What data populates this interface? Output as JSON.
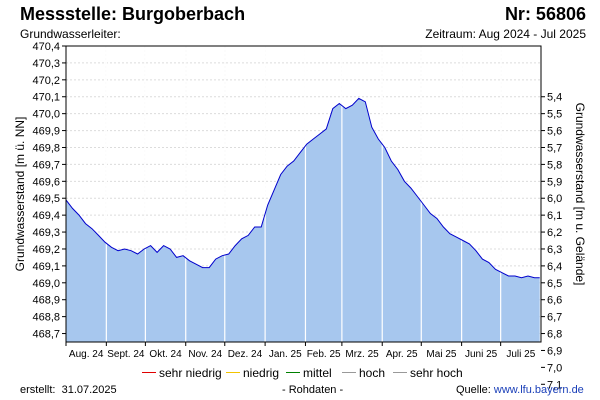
{
  "header": {
    "title": "Messstelle: Burgoberbach",
    "number": "Nr: 56806",
    "aquifer": "Grundwasserleiter:",
    "period": "Zeitraum: Aug 2024 - Jul 2025"
  },
  "legend": {
    "items": [
      {
        "label": "sehr niedrig",
        "color": "#e00000"
      },
      {
        "label": "niedrig",
        "color": "#f2c400"
      },
      {
        "label": "mittel",
        "color": "#008000"
      },
      {
        "label": "hoch",
        "color": "#999999"
      },
      {
        "label": "sehr hoch",
        "color": "#999999"
      }
    ]
  },
  "footer": {
    "created_label": "erstellt:",
    "created_date": "31.07.2025",
    "raw_label": "- Rohdaten -",
    "source_label": "Quelle:",
    "source_link": "www.lfu.bayern.de"
  },
  "colors": {
    "line": "#0000cc",
    "fill": "#a7c7ee",
    "grid": "#dcdcdc",
    "month_line": "#ffffff"
  },
  "chart_data": {
    "type": "area",
    "title": "",
    "ylabel": "Grundwasserstand [m ü. NN]",
    "y2label": "Grundwasserstand [m u. Gelände]",
    "ylim": [
      468.65,
      470.4
    ],
    "yticks": [
      "468,7",
      "468,8",
      "468,9",
      "469,0",
      "469,1",
      "469,2",
      "469,3",
      "469,4",
      "469,5",
      "469,6",
      "469,7",
      "469,8",
      "469,9",
      "470,0",
      "470,1",
      "470,2",
      "470,3",
      "470,4"
    ],
    "y2_reference": 475.5,
    "y2ticks": [
      "5,4",
      "5,5",
      "5,6",
      "5,7",
      "5,8",
      "5,9",
      "6,0",
      "6,1",
      "6,2",
      "6,3",
      "6,4",
      "6,5",
      "6,6",
      "6,7",
      "6,8",
      "6,9",
      "7,0",
      "7,1"
    ],
    "x_months": [
      "Aug. 24",
      "Sept. 24",
      "Okt. 24",
      "Nov. 24",
      "Dez. 24",
      "Jan. 25",
      "Feb. 25",
      "Mrz. 25",
      "Apr. 25",
      "Mai 25",
      "Juni 25",
      "Juli 25"
    ],
    "x_start": "2024-08-01",
    "x_end": "2025-07-31",
    "grid": true,
    "series": [
      {
        "points": [
          [
            "2024-08-01",
            469.49
          ],
          [
            "2024-08-06",
            469.44
          ],
          [
            "2024-08-11",
            469.4
          ],
          [
            "2024-08-16",
            469.35
          ],
          [
            "2024-08-21",
            469.32
          ],
          [
            "2024-08-26",
            469.28
          ],
          [
            "2024-08-31",
            469.24
          ],
          [
            "2024-09-05",
            469.21
          ],
          [
            "2024-09-10",
            469.19
          ],
          [
            "2024-09-15",
            469.2
          ],
          [
            "2024-09-20",
            469.19
          ],
          [
            "2024-09-25",
            469.17
          ],
          [
            "2024-09-30",
            469.2
          ],
          [
            "2024-10-05",
            469.22
          ],
          [
            "2024-10-10",
            469.18
          ],
          [
            "2024-10-15",
            469.22
          ],
          [
            "2024-10-20",
            469.2
          ],
          [
            "2024-10-25",
            469.15
          ],
          [
            "2024-10-30",
            469.16
          ],
          [
            "2024-11-04",
            469.13
          ],
          [
            "2024-11-09",
            469.11
          ],
          [
            "2024-11-14",
            469.09
          ],
          [
            "2024-11-19",
            469.09
          ],
          [
            "2024-11-24",
            469.14
          ],
          [
            "2024-11-29",
            469.16
          ],
          [
            "2024-12-04",
            469.17
          ],
          [
            "2024-12-09",
            469.22
          ],
          [
            "2024-12-14",
            469.26
          ],
          [
            "2024-12-19",
            469.28
          ],
          [
            "2024-12-24",
            469.33
          ],
          [
            "2024-12-29",
            469.33
          ],
          [
            "2025-01-03",
            469.46
          ],
          [
            "2025-01-08",
            469.55
          ],
          [
            "2025-01-13",
            469.64
          ],
          [
            "2025-01-18",
            469.69
          ],
          [
            "2025-01-23",
            469.72
          ],
          [
            "2025-01-28",
            469.77
          ],
          [
            "2025-02-02",
            469.82
          ],
          [
            "2025-02-07",
            469.85
          ],
          [
            "2025-02-12",
            469.88
          ],
          [
            "2025-02-17",
            469.91
          ],
          [
            "2025-02-22",
            470.03
          ],
          [
            "2025-02-27",
            470.06
          ],
          [
            "2025-03-04",
            470.03
          ],
          [
            "2025-03-09",
            470.05
          ],
          [
            "2025-03-14",
            470.09
          ],
          [
            "2025-03-19",
            470.07
          ],
          [
            "2025-03-24",
            469.92
          ],
          [
            "2025-03-29",
            469.85
          ],
          [
            "2025-04-03",
            469.8
          ],
          [
            "2025-04-08",
            469.72
          ],
          [
            "2025-04-13",
            469.67
          ],
          [
            "2025-04-18",
            469.6
          ],
          [
            "2025-04-23",
            469.56
          ],
          [
            "2025-04-28",
            469.51
          ],
          [
            "2025-05-03",
            469.46
          ],
          [
            "2025-05-08",
            469.41
          ],
          [
            "2025-05-13",
            469.38
          ],
          [
            "2025-05-18",
            469.33
          ],
          [
            "2025-05-23",
            469.29
          ],
          [
            "2025-05-28",
            469.27
          ],
          [
            "2025-06-02",
            469.25
          ],
          [
            "2025-06-07",
            469.23
          ],
          [
            "2025-06-12",
            469.19
          ],
          [
            "2025-06-17",
            469.14
          ],
          [
            "2025-06-22",
            469.12
          ],
          [
            "2025-06-27",
            469.08
          ],
          [
            "2025-07-02",
            469.06
          ],
          [
            "2025-07-07",
            469.04
          ],
          [
            "2025-07-12",
            469.04
          ],
          [
            "2025-07-17",
            469.03
          ],
          [
            "2025-07-22",
            469.04
          ],
          [
            "2025-07-27",
            469.03
          ],
          [
            "2025-07-31",
            469.03
          ]
        ]
      }
    ]
  }
}
